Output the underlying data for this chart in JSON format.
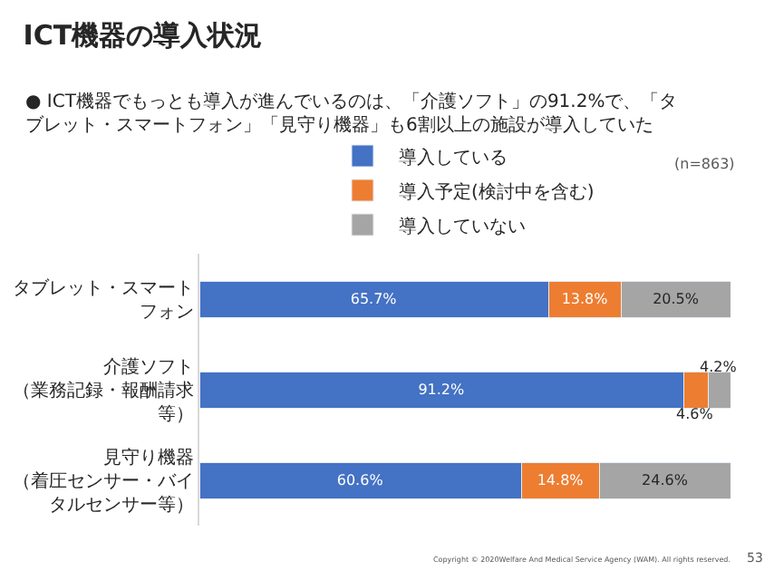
{
  "chart_data": {
    "type": "bar",
    "orientation": "horizontal",
    "stacked": true,
    "title": "ICT機器の導入状況",
    "subtitle": "● ICT機器でもっとも導入が進んでいるのは、「介護ソフト」の91.2%で、「タブレット・スマートフォン」「見守り機器」も6割以上の施設が導入していた",
    "categories": [
      "タブレット・スマートフォン",
      "介護ソフト（業務記録・報酬請求等）",
      "見守り機器（着圧センサー・バイタルセンサー等）"
    ],
    "series": [
      {
        "name": "導入している",
        "color": "#4472c4",
        "values": [
          65.7,
          91.2,
          60.6
        ],
        "value_labels": [
          "65.7%",
          "91.2%",
          "60.6%"
        ]
      },
      {
        "name": "導入予定(検討中を含む)",
        "color": "#ed7d31",
        "values": [
          13.8,
          4.6,
          14.8
        ],
        "value_labels": [
          "13.8%",
          "4.6%",
          "14.8%"
        ]
      },
      {
        "name": "導入していない",
        "color": "#a5a5a5",
        "values": [
          20.5,
          4.2,
          24.6
        ],
        "value_labels": [
          "20.5%",
          "4.2%",
          "24.6%"
        ]
      }
    ],
    "xlim": [
      0,
      100
    ],
    "legend": "top",
    "annotations": [
      "(n=863)",
      "Copyright © 2020Welfare And Medical Service Agency (WAM). All rights reserved.",
      "53"
    ]
  }
}
